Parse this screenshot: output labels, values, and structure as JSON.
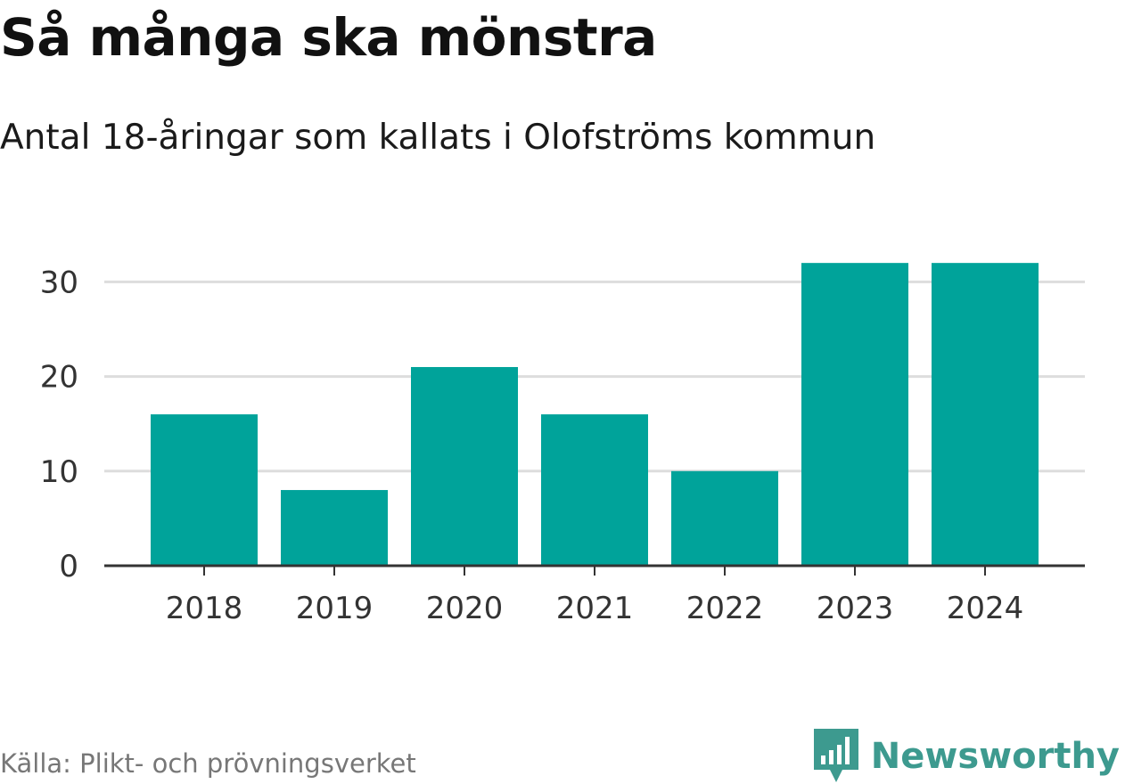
{
  "title": "Så många ska mönstra",
  "subtitle": "Antal 18-åringar som kallats i Olofströms kommun",
  "source": "Källa: Plikt- och prövningsverket",
  "brand": {
    "name": "Newsworthy",
    "icon": "newsworthy-logo-icon"
  },
  "colors": {
    "bar": "#00a39a",
    "grid": "#dddddd",
    "axis": "#333333",
    "brand": "#3d9a8f"
  },
  "chart_data": {
    "type": "bar",
    "title": "Så många ska mönstra",
    "subtitle": "Antal 18-åringar som kallats i Olofströms kommun",
    "xlabel": "",
    "ylabel": "",
    "categories": [
      "2018",
      "2019",
      "2020",
      "2021",
      "2022",
      "2023",
      "2024"
    ],
    "values": [
      16,
      8,
      21,
      16,
      10,
      32,
      32
    ],
    "ylim": [
      0,
      32
    ],
    "yticks": [
      0,
      10,
      20,
      30
    ],
    "grid": true,
    "legend": "none"
  }
}
